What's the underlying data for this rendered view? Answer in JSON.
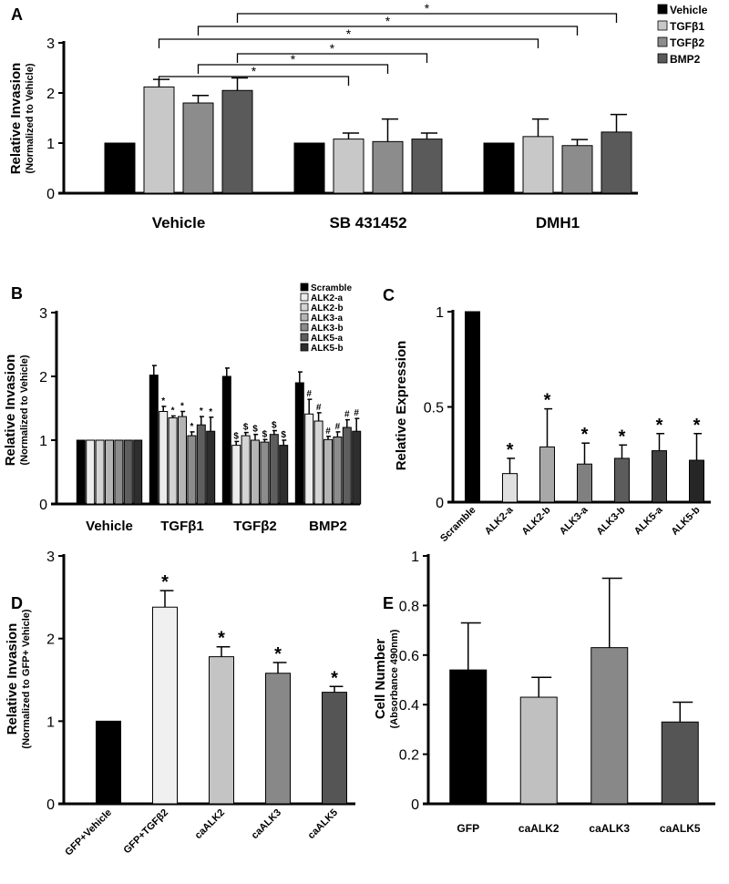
{
  "chart_data": [
    {
      "panel": "A",
      "type": "bar",
      "ylabel": "Relative Invasion",
      "ylabel_sub": "(Normalized to Vehicle)",
      "ylim": [
        0,
        3
      ],
      "yticks": [
        "0",
        "1",
        "2",
        "3"
      ],
      "categories": [
        "Vehicle",
        "SB 431452",
        "DMH1"
      ],
      "series": [
        {
          "name": "Vehicle",
          "color": "#000000",
          "values": [
            1,
            1,
            1
          ],
          "errors": [
            0,
            0,
            0
          ]
        },
        {
          "name": "TGFβ1",
          "color": "#c8c8c8",
          "values": [
            2.12,
            1.08,
            1.13
          ],
          "errors": [
            0.15,
            0.12,
            0.35
          ]
        },
        {
          "name": "TGFβ2",
          "color": "#8c8c8c",
          "values": [
            1.8,
            1.03,
            0.95
          ],
          "errors": [
            0.15,
            0.45,
            0.12
          ]
        },
        {
          "name": "BMP2",
          "color": "#5a5a5a",
          "values": [
            2.05,
            1.08,
            1.22
          ],
          "errors": [
            0.25,
            0.12,
            0.35
          ]
        }
      ],
      "legend": "top-right",
      "brackets": [
        {
          "from": [
            0,
            1
          ],
          "to": [
            1,
            1
          ],
          "label": "*"
        },
        {
          "from": [
            0,
            2
          ],
          "to": [
            1,
            2
          ],
          "label": "*"
        },
        {
          "from": [
            0,
            3
          ],
          "to": [
            1,
            3
          ],
          "label": "*"
        },
        {
          "from": [
            0,
            1
          ],
          "to": [
            2,
            1
          ],
          "label": "*"
        },
        {
          "from": [
            0,
            2
          ],
          "to": [
            2,
            2
          ],
          "label": "*"
        },
        {
          "from": [
            0,
            3
          ],
          "to": [
            2,
            3
          ],
          "label": "*"
        }
      ]
    },
    {
      "panel": "B",
      "type": "bar",
      "ylabel": "Relative Invasion",
      "ylabel_sub": "(Normalized to Vehicle)",
      "ylim": [
        0,
        3
      ],
      "yticks": [
        "0",
        "1",
        "2",
        "3"
      ],
      "categories": [
        "Vehicle",
        "TGFβ1",
        "TGFβ2",
        "BMP2"
      ],
      "series": [
        {
          "name": "Scramble",
          "color": "#000000",
          "values": [
            1,
            2.02,
            2.0,
            1.9
          ],
          "errors": [
            0,
            0.15,
            0.13,
            0.17
          ],
          "markers": [
            "",
            "",
            "",
            ""
          ]
        },
        {
          "name": "ALK2-a",
          "color": "#ececec",
          "values": [
            1,
            1.45,
            0.92,
            1.41
          ],
          "errors": [
            0,
            0.08,
            0.06,
            0.23
          ],
          "markers": [
            "",
            "*",
            "$",
            "#"
          ]
        },
        {
          "name": "ALK2-b",
          "color": "#d4d4d4",
          "values": [
            1,
            1.35,
            1.07,
            1.3
          ],
          "errors": [
            0,
            0.03,
            0.05,
            0.13
          ],
          "markers": [
            "",
            "*",
            "$",
            "#"
          ]
        },
        {
          "name": "ALK3-a",
          "color": "#b4b4b4",
          "values": [
            1,
            1.37,
            1.0,
            1.01
          ],
          "errors": [
            0,
            0.08,
            0.09,
            0.05
          ],
          "markers": [
            "",
            "*",
            "$",
            "#"
          ]
        },
        {
          "name": "ALK3-b",
          "color": "#8c8c8c",
          "values": [
            1,
            1.07,
            0.97,
            1.05
          ],
          "errors": [
            0,
            0.06,
            0.04,
            0.08
          ],
          "markers": [
            "",
            "*",
            "$",
            "#"
          ]
        },
        {
          "name": "ALK5-a",
          "color": "#5e5e5e",
          "values": [
            1,
            1.24,
            1.09,
            1.2
          ],
          "errors": [
            0,
            0.13,
            0.06,
            0.12
          ],
          "markers": [
            "",
            "*",
            "$",
            "#"
          ]
        },
        {
          "name": "ALK5-b",
          "color": "#2e2e2e",
          "values": [
            1,
            1.14,
            0.92,
            1.14
          ],
          "errors": [
            0,
            0.22,
            0.08,
            0.2
          ],
          "markers": [
            "",
            "*",
            "$",
            "#"
          ]
        }
      ],
      "legend": "top-right"
    },
    {
      "panel": "C",
      "type": "bar",
      "ylabel": "Relative Expression",
      "ylim": [
        0,
        1
      ],
      "yticks": [
        "0",
        "0.5",
        "1"
      ],
      "categories": [
        "Scramble",
        "ALK2-a",
        "ALK2-b",
        "ALK3-a",
        "ALK3-b",
        "ALK5-a",
        "ALK5-b"
      ],
      "values": [
        1,
        0.15,
        0.29,
        0.2,
        0.23,
        0.27,
        0.22
      ],
      "errors": [
        0,
        0.08,
        0.2,
        0.11,
        0.07,
        0.09,
        0.14
      ],
      "markers": [
        "",
        "*",
        "*",
        "*",
        "*",
        "*",
        "*"
      ],
      "colors": [
        "#000000",
        "#e0e0e0",
        "#a8a8a8",
        "#808080",
        "#5c5c5c",
        "#404040",
        "#262626"
      ]
    },
    {
      "panel": "D",
      "type": "bar",
      "ylabel": "Relative Invasion",
      "ylabel_sub": "(Normalized to GFP+ Vehicle)",
      "ylim": [
        0,
        3
      ],
      "yticks": [
        "0",
        "1",
        "2",
        "3"
      ],
      "categories": [
        "GFP+Vehicle",
        "GFP+TGFβ2",
        "caALK2",
        "caALK3",
        "caALK5"
      ],
      "values": [
        1,
        2.38,
        1.78,
        1.58,
        1.35
      ],
      "errors": [
        0,
        0.2,
        0.12,
        0.13,
        0.07
      ],
      "markers": [
        "",
        "*",
        "*",
        "*",
        "*"
      ],
      "colors": [
        "#000000",
        "#f0f0f0",
        "#c4c4c4",
        "#888888",
        "#555555"
      ]
    },
    {
      "panel": "E",
      "type": "bar",
      "ylabel": "Cell Number",
      "ylabel_sub": "(Absorbance 490nm)",
      "ylim": [
        0,
        1
      ],
      "yticks": [
        "0",
        "0.2",
        "0.4",
        "0.6",
        "0.8",
        "1"
      ],
      "categories": [
        "GFP",
        "caALK2",
        "caALK3",
        "caALK5"
      ],
      "values": [
        0.54,
        0.43,
        0.63,
        0.33
      ],
      "errors": [
        0.19,
        0.08,
        0.28,
        0.08
      ],
      "markers": [
        "",
        "",
        "",
        ""
      ],
      "colors": [
        "#000000",
        "#c0c0c0",
        "#888888",
        "#555555"
      ]
    }
  ]
}
